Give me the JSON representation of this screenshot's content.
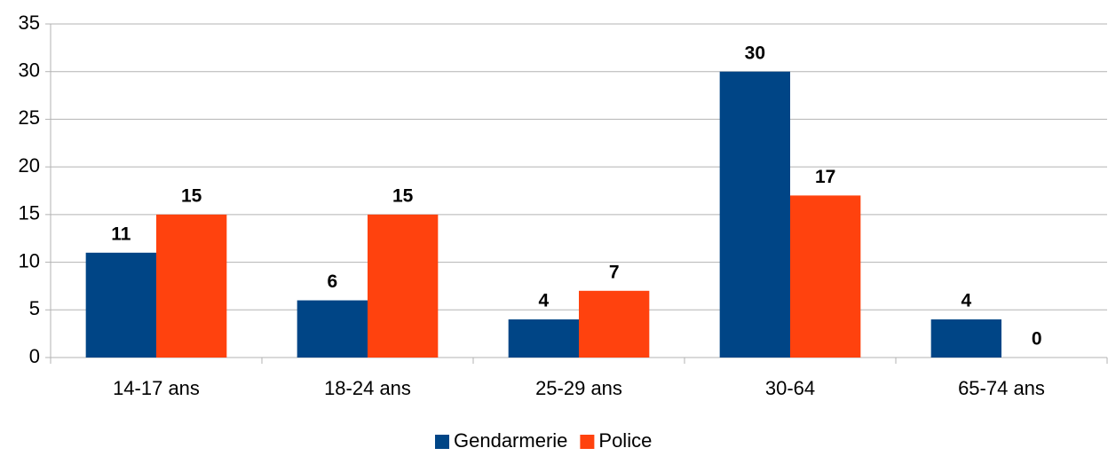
{
  "chart_data": {
    "type": "bar",
    "categories": [
      "14-17 ans",
      "18-24 ans",
      "25-29 ans",
      "30-64",
      "65-74 ans"
    ],
    "series": [
      {
        "name": "Gendarmerie",
        "color": "#004586",
        "label_color": "#1c2f66",
        "values": [
          11,
          6,
          4,
          30,
          4
        ]
      },
      {
        "name": "Police",
        "color": "#ff420e",
        "label_color": "#9c1414",
        "values": [
          15,
          15,
          7,
          17,
          0
        ]
      }
    ],
    "ylim": [
      0,
      35
    ],
    "yticks": [
      0,
      5,
      10,
      15,
      20,
      25,
      30,
      35
    ],
    "grid": true,
    "legend": "bottom"
  }
}
